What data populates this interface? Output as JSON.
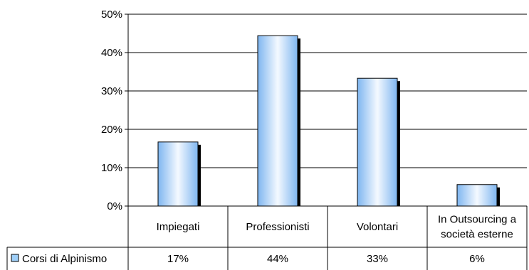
{
  "chart_data": {
    "type": "bar",
    "title": "",
    "xlabel": "",
    "ylabel": "",
    "categories": [
      [
        "Impiegati"
      ],
      [
        "Professionisti"
      ],
      [
        "Volontari"
      ],
      [
        "In Outsourcing a",
        "società esterne"
      ]
    ],
    "series": [
      {
        "name": "Corsi di Alpinismo",
        "values": [
          16.7,
          44.4,
          33.3,
          5.6
        ],
        "labels": [
          "17%",
          "44%",
          "33%",
          "6%"
        ],
        "color": "#9fcff8"
      }
    ],
    "ylim": [
      0,
      50
    ],
    "yticks": [
      "0%",
      "10%",
      "20%",
      "30%",
      "40%",
      "50%"
    ],
    "grid": true,
    "legend": "data-table"
  }
}
